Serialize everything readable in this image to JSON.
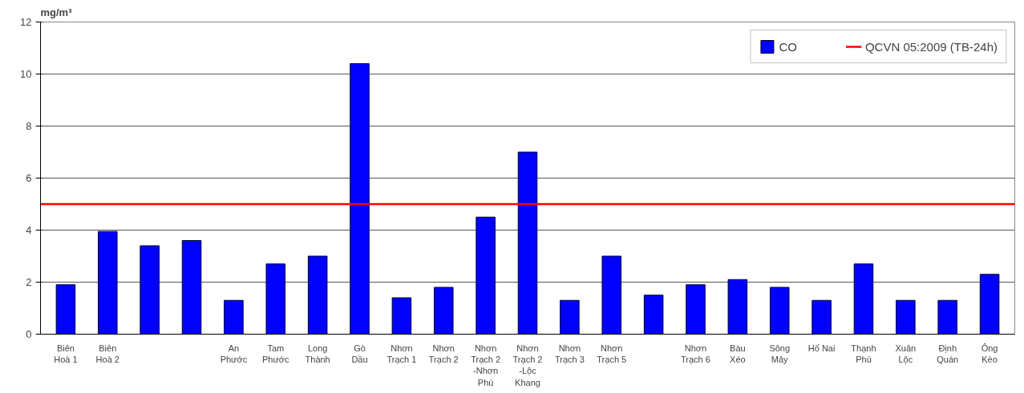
{
  "chart_data": {
    "type": "bar",
    "ylabel": "mg/m³",
    "categories": [
      "Biên\nHoà 1",
      "Biên\nHoà 2",
      null,
      null,
      "An\nPhước",
      "Tam\nPhước",
      "Long\nThành",
      "Gò\nDầu",
      "Nhơn\nTrạch 1",
      "Nhơn\nTrạch 2",
      "Nhơn\nTrạch 2\n-Nhơn\nPhú",
      "Nhơn\nTrạch 2\n-Lộc\nKhang",
      "Nhơn\nTrạch 3",
      "Nhơn\nTrạch 5",
      null,
      "Nhơn\nTrạch 6",
      "Bàu\nXéo",
      "Sông\nMây",
      "Hố Nai",
      "Thạnh\nPhú",
      "Xuân\nLộc",
      "Định\nQuán",
      "Ông\nKèo"
    ],
    "series": [
      {
        "name": "CO",
        "color": "#0000ff",
        "values": [
          1.9,
          3.95,
          3.4,
          3.6,
          1.3,
          2.7,
          3.0,
          10.4,
          1.4,
          1.8,
          4.5,
          7.0,
          1.3,
          3.0,
          1.5,
          1.9,
          2.1,
          1.8,
          1.3,
          2.7,
          1.3,
          1.3,
          2.3
        ]
      }
    ],
    "ylim": [
      0,
      12
    ],
    "yticks": [
      0,
      2,
      4,
      6,
      8,
      10,
      12
    ],
    "ref_lines": [
      {
        "axis": "y",
        "value": 5,
        "label": "QCVN 05:2009 (TB-24h)",
        "color": "#ff0000"
      }
    ],
    "grid": "y",
    "legend": "top right"
  }
}
